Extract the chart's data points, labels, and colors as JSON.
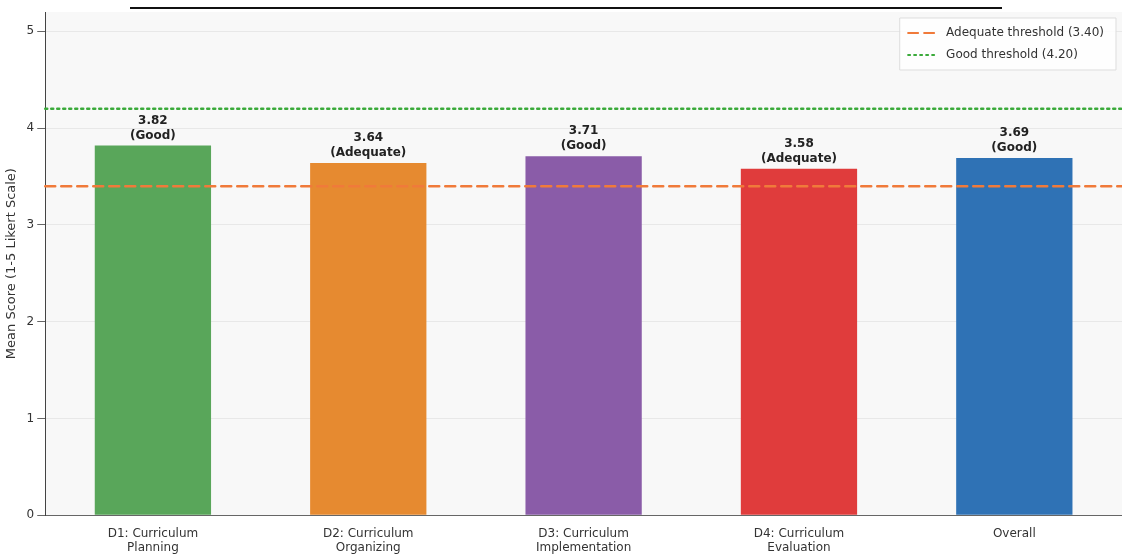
{
  "chart_data": {
    "type": "bar",
    "ylabel": "Mean Score (1-5 Likert Scale)",
    "categories": [
      "D1: Curriculum\nPlanning",
      "D2: Curriculum\nOrganizing",
      "D3: Curriculum\nImplementation",
      "D4: Curriculum\nEvaluation",
      "Overall"
    ],
    "values": [
      3.82,
      3.64,
      3.71,
      3.58,
      3.69
    ],
    "colors": [
      "#59a65a",
      "#e68a30",
      "#8a5ca8",
      "#e03c3c",
      "#2f72b5"
    ],
    "value_labels": [
      "3.82\n(Good)",
      "3.64\n(Adequate)",
      "3.71\n(Good)",
      "3.58\n(Adequate)",
      "3.69\n(Good)"
    ],
    "ylim": [
      0,
      5.2
    ],
    "yticks": [
      0,
      1,
      2,
      3,
      4,
      5
    ],
    "grid": "y",
    "legend": "top right",
    "ref_lines": [
      {
        "axis": "y",
        "value": 3.4,
        "label": "Adequate threshold (3.40)",
        "color": "#f07a3a",
        "line_style": "dashed"
      },
      {
        "axis": "y",
        "value": 4.2,
        "label": "Good threshold (4.20)",
        "color": "#3aaa3a",
        "line_style": "dotted"
      }
    ]
  }
}
